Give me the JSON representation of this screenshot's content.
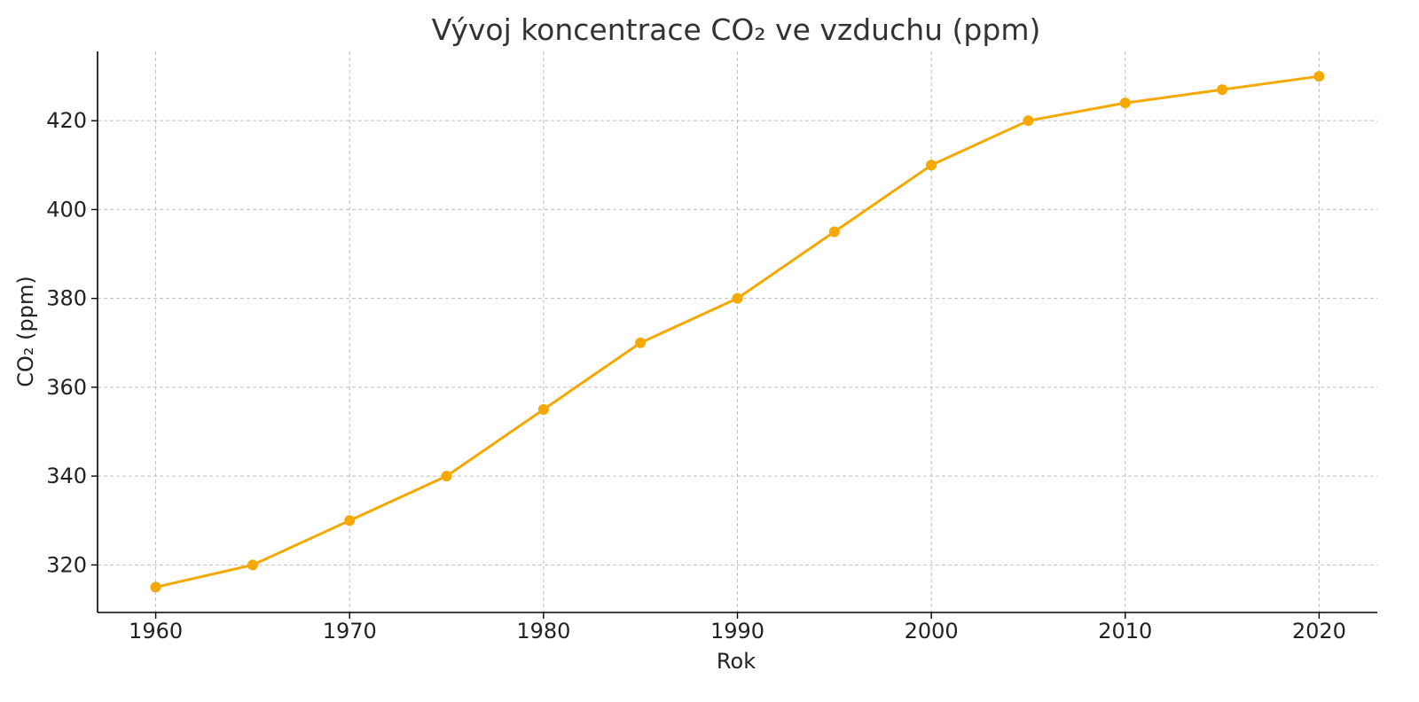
{
  "chart_data": {
    "type": "line",
    "title": "Vývoj koncentrace CO₂ ve vzduchu (ppm)",
    "xlabel": "Rok",
    "ylabel": "CO₂ (ppm)",
    "x": [
      1960,
      1965,
      1970,
      1975,
      1980,
      1985,
      1990,
      1995,
      2000,
      2005,
      2010,
      2015,
      2020
    ],
    "series": [
      {
        "values": [
          315,
          320,
          330,
          340,
          355,
          370,
          380,
          395,
          410,
          420,
          424,
          427,
          430
        ]
      }
    ],
    "x_ticks": [
      "1960",
      "1970",
      "1980",
      "1990",
      "2000",
      "2010",
      "2020"
    ],
    "y_ticks": [
      "320",
      "340",
      "360",
      "380",
      "400",
      "420"
    ],
    "xlim": [
      1957,
      2023
    ],
    "ylim": [
      309.3,
      435.6
    ],
    "grid": true,
    "grid_style": "dashed",
    "legend": "none",
    "markers": true,
    "colors": {
      "line": "#f5a800",
      "marker": "#f5a800",
      "grid": "#b0b0b0",
      "axis": "#000000",
      "text": "#222222",
      "title": "#333333"
    }
  }
}
